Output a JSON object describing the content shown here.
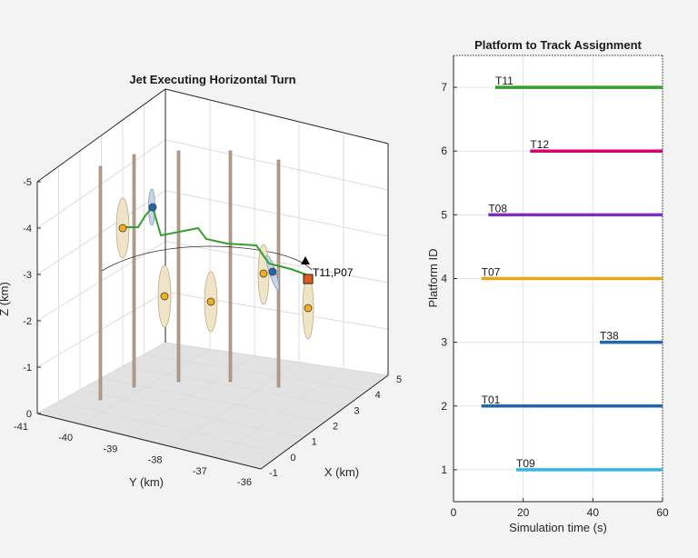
{
  "figure": {
    "left_title": "Jet Executing Horizontal Turn",
    "right_title": "Platform to Track Assignment"
  },
  "chart_data": [
    {
      "type": "line3d",
      "title": "Jet Executing Horizontal Turn",
      "xlabel": "X (km)",
      "ylabel": "Y (km)",
      "zlabel": "Z (km)",
      "xlim": [
        -1,
        5
      ],
      "ylim": [
        -41,
        -36
      ],
      "zlim": [
        0,
        -5
      ],
      "xticks": [
        "-1",
        "0",
        "1",
        "2",
        "3",
        "4",
        "5"
      ],
      "yticks": [
        "-41",
        "-40",
        "-39",
        "-38",
        "-37",
        "-36"
      ],
      "zticks": [
        "0",
        "-1",
        "-2",
        "-3",
        "-4",
        "-5"
      ],
      "grid": true,
      "annotations": [
        "T11,P07"
      ],
      "elements": [
        "truth trajectory",
        "track T11 (green)",
        "detections (orange)",
        "detections (blue)",
        "towers",
        "covariance ellipsoids"
      ]
    },
    {
      "type": "line",
      "title": "Platform to Track Assignment",
      "xlabel": "Simulation time (s)",
      "ylabel": "Platform ID",
      "xlim": [
        0,
        60
      ],
      "ylim": [
        0.5,
        7.5
      ],
      "xticks": [
        0,
        20,
        40,
        60
      ],
      "yticks": [
        1,
        2,
        3,
        4,
        5,
        6,
        7
      ],
      "grid": true,
      "series": [
        {
          "name": "T11",
          "platform": 7,
          "start": 12,
          "end": 60,
          "color": "#33a02c"
        },
        {
          "name": "T12",
          "platform": 6,
          "start": 22,
          "end": 60,
          "color": "#d6006f"
        },
        {
          "name": "T08",
          "platform": 5,
          "start": 10,
          "end": 60,
          "color": "#7e2fbe"
        },
        {
          "name": "T07",
          "platform": 4,
          "start": 8,
          "end": 60,
          "color": "#e6a817"
        },
        {
          "name": "T38",
          "platform": 3,
          "start": 42,
          "end": 60,
          "color": "#1f66b0"
        },
        {
          "name": "T01",
          "platform": 2,
          "start": 8,
          "end": 60,
          "color": "#1f66b0"
        },
        {
          "name": "T09",
          "platform": 1,
          "start": 18,
          "end": 60,
          "color": "#33b5e5"
        }
      ]
    }
  ]
}
